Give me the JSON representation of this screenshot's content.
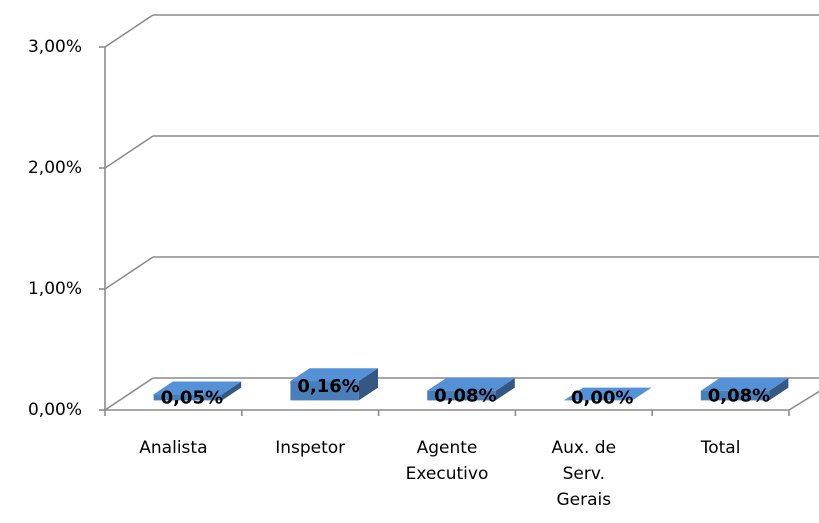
{
  "chart_data": {
    "type": "bar3d",
    "categories": [
      "Analista",
      "Inspetor",
      "Agente Executivo",
      "Aux. de Serv. Gerais",
      "Total"
    ],
    "values": [
      0.05,
      0.16,
      0.08,
      0.0,
      0.08
    ],
    "value_labels": [
      "0,05%",
      "0,16%",
      "0,08%",
      "0,00%",
      "0,08%"
    ],
    "color": "#4a7ebb",
    "ylim": [
      0,
      3
    ],
    "yticks": [
      {
        "value": 0,
        "label": "0,00%"
      },
      {
        "value": 1,
        "label": "1,00%"
      },
      {
        "value": 2,
        "label": "2,00%"
      },
      {
        "value": 3,
        "label": "3,00%"
      }
    ],
    "grid": true
  }
}
